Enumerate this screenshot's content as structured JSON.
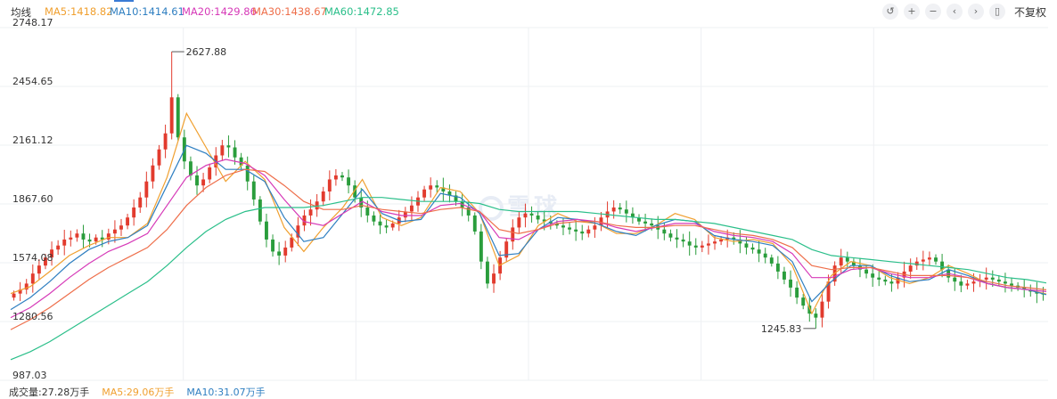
{
  "header": {
    "mode_label": "均线",
    "ma_labels": [
      {
        "text": "MA5:1418.82",
        "color": "#f0a030"
      },
      {
        "text": "MA10:1414.61",
        "color": "#2f7fc1"
      },
      {
        "text": "MA20:1429.86",
        "color": "#d63ab8"
      },
      {
        "text": "MA30:1438.67",
        "color": "#ee6e4a"
      },
      {
        "text": "MA60:1472.85",
        "color": "#2bbf8a"
      }
    ]
  },
  "toolbar": {
    "buttons": [
      {
        "name": "undo-icon",
        "glyph": "↺"
      },
      {
        "name": "zoom-in-icon",
        "glyph": "+"
      },
      {
        "name": "zoom-out-icon",
        "glyph": "−"
      },
      {
        "name": "prev-icon",
        "glyph": "‹"
      },
      {
        "name": "next-icon",
        "glyph": "›"
      },
      {
        "name": "candle-icon",
        "glyph": "▯"
      }
    ],
    "adjust_label": "不复权"
  },
  "watermark": "雪球",
  "volume_row": {
    "items": [
      {
        "text": "成交量:27.28万手",
        "color": "#333333"
      },
      {
        "text": "MA5:29.06万手",
        "color": "#f0a030"
      },
      {
        "text": "MA10:31.07万手",
        "color": "#2f7fc1"
      }
    ]
  },
  "chart_data": {
    "type": "candlestick",
    "y_ticks": [
      "2748.17",
      "2454.65",
      "2161.12",
      "1867.60",
      "1574.08",
      "1280.56",
      "987.03"
    ],
    "ylim": [
      987.03,
      2748.17
    ],
    "grid": true,
    "annotations": [
      {
        "label": "2627.88",
        "value": 2627.88,
        "kind": "high"
      },
      {
        "label": "1245.83",
        "value": 1245.83,
        "kind": "low"
      }
    ],
    "up_color": "#e23b2e",
    "down_color": "#2a9d3c",
    "candles": [
      1420,
      1440,
      1470,
      1520,
      1560,
      1600,
      1640,
      1660,
      1690,
      1700,
      1720,
      1690,
      1680,
      1700,
      1690,
      1720,
      1740,
      1760,
      1800,
      1850,
      1900,
      1980,
      2060,
      2140,
      2220,
      2400,
      2200,
      2080,
      2010,
      1960,
      1990,
      2050,
      2110,
      2160,
      2150,
      2100,
      2060,
      1980,
      1890,
      1780,
      1690,
      1630,
      1610,
      1650,
      1700,
      1760,
      1810,
      1840,
      1880,
      1930,
      1990,
      2010,
      2000,
      1960,
      1900,
      1850,
      1810,
      1780,
      1760,
      1750,
      1770,
      1800,
      1830,
      1860,
      1900,
      1940,
      1960,
      1950,
      1930,
      1910,
      1880,
      1850,
      1810,
      1730,
      1580,
      1470,
      1520,
      1600,
      1680,
      1750,
      1800,
      1820,
      1810,
      1790,
      1780,
      1770,
      1760,
      1750,
      1740,
      1730,
      1720,
      1740,
      1760,
      1800,
      1830,
      1850,
      1840,
      1820,
      1800,
      1780,
      1770,
      1760,
      1740,
      1720,
      1700,
      1690,
      1680,
      1660,
      1650,
      1660,
      1670,
      1680,
      1690,
      1700,
      1690,
      1670,
      1650,
      1640,
      1620,
      1600,
      1570,
      1530,
      1490,
      1450,
      1400,
      1360,
      1320,
      1300,
      1380,
      1480,
      1560,
      1600,
      1580,
      1560,
      1540,
      1520,
      1500,
      1490,
      1480,
      1470,
      1500,
      1530,
      1560,
      1580,
      1590,
      1600,
      1580,
      1540,
      1500,
      1480,
      1460,
      1470,
      1480,
      1490,
      1500,
      1490,
      1480,
      1470,
      1460,
      1450,
      1440,
      1430,
      1420,
      1418
    ],
    "ma": [
      {
        "name": "MA5",
        "color": "#f0a030",
        "values": [
          1420,
          1455,
          1530,
          1610,
          1660,
          1700,
          1700,
          1770,
          2000,
          2320,
          2150,
          1980,
          2080,
          1990,
          1750,
          1630,
          1750,
          1850,
          1990,
          1800,
          1760,
          1800,
          1950,
          1930,
          1820,
          1560,
          1610,
          1760,
          1820,
          1780,
          1770,
          1720,
          1720,
          1760,
          1820,
          1790,
          1700,
          1680,
          1690,
          1670,
          1560,
          1320,
          1510,
          1580,
          1560,
          1500,
          1470,
          1500,
          1560,
          1520,
          1470,
          1450,
          1440,
          1418
        ]
      },
      {
        "name": "MA10",
        "color": "#2f7fc1",
        "values": [
          1340,
          1400,
          1480,
          1570,
          1640,
          1680,
          1700,
          1760,
          1960,
          2160,
          2120,
          2040,
          2040,
          1980,
          1800,
          1680,
          1700,
          1820,
          1940,
          1820,
          1780,
          1790,
          1920,
          1900,
          1820,
          1610,
          1620,
          1740,
          1800,
          1790,
          1770,
          1730,
          1710,
          1760,
          1790,
          1780,
          1710,
          1690,
          1680,
          1660,
          1580,
          1380,
          1480,
          1560,
          1560,
          1510,
          1480,
          1490,
          1540,
          1510,
          1470,
          1450,
          1440,
          1415
        ]
      },
      {
        "name": "MA20",
        "color": "#d63ab8",
        "values": [
          1300,
          1350,
          1420,
          1500,
          1570,
          1630,
          1670,
          1720,
          1860,
          2000,
          2060,
          2090,
          2070,
          2010,
          1890,
          1780,
          1760,
          1820,
          1880,
          1830,
          1810,
          1810,
          1860,
          1870,
          1830,
          1700,
          1690,
          1740,
          1780,
          1790,
          1780,
          1750,
          1730,
          1750,
          1770,
          1770,
          1730,
          1710,
          1700,
          1680,
          1620,
          1500,
          1500,
          1540,
          1550,
          1520,
          1500,
          1500,
          1520,
          1500,
          1470,
          1450,
          1440,
          1430
        ]
      },
      {
        "name": "MA30",
        "color": "#ee6e4a",
        "values": [
          1240,
          1290,
          1350,
          1420,
          1490,
          1550,
          1600,
          1650,
          1740,
          1860,
          1950,
          2010,
          2040,
          2030,
          1960,
          1880,
          1840,
          1840,
          1860,
          1840,
          1830,
          1820,
          1840,
          1850,
          1830,
          1740,
          1720,
          1740,
          1770,
          1780,
          1780,
          1760,
          1750,
          1750,
          1760,
          1760,
          1740,
          1720,
          1710,
          1690,
          1650,
          1560,
          1540,
          1550,
          1550,
          1530,
          1510,
          1510,
          1510,
          1500,
          1480,
          1460,
          1450,
          1439
        ]
      },
      {
        "name": "MA60",
        "color": "#2bbf8a",
        "values": [
          1090,
          1130,
          1180,
          1240,
          1300,
          1360,
          1420,
          1480,
          1560,
          1650,
          1730,
          1790,
          1830,
          1850,
          1850,
          1850,
          1860,
          1880,
          1900,
          1900,
          1890,
          1880,
          1880,
          1880,
          1870,
          1840,
          1830,
          1830,
          1830,
          1830,
          1820,
          1810,
          1800,
          1790,
          1790,
          1780,
          1770,
          1750,
          1730,
          1710,
          1690,
          1640,
          1610,
          1600,
          1590,
          1580,
          1570,
          1560,
          1550,
          1540,
          1520,
          1500,
          1490,
          1473
        ]
      }
    ]
  }
}
